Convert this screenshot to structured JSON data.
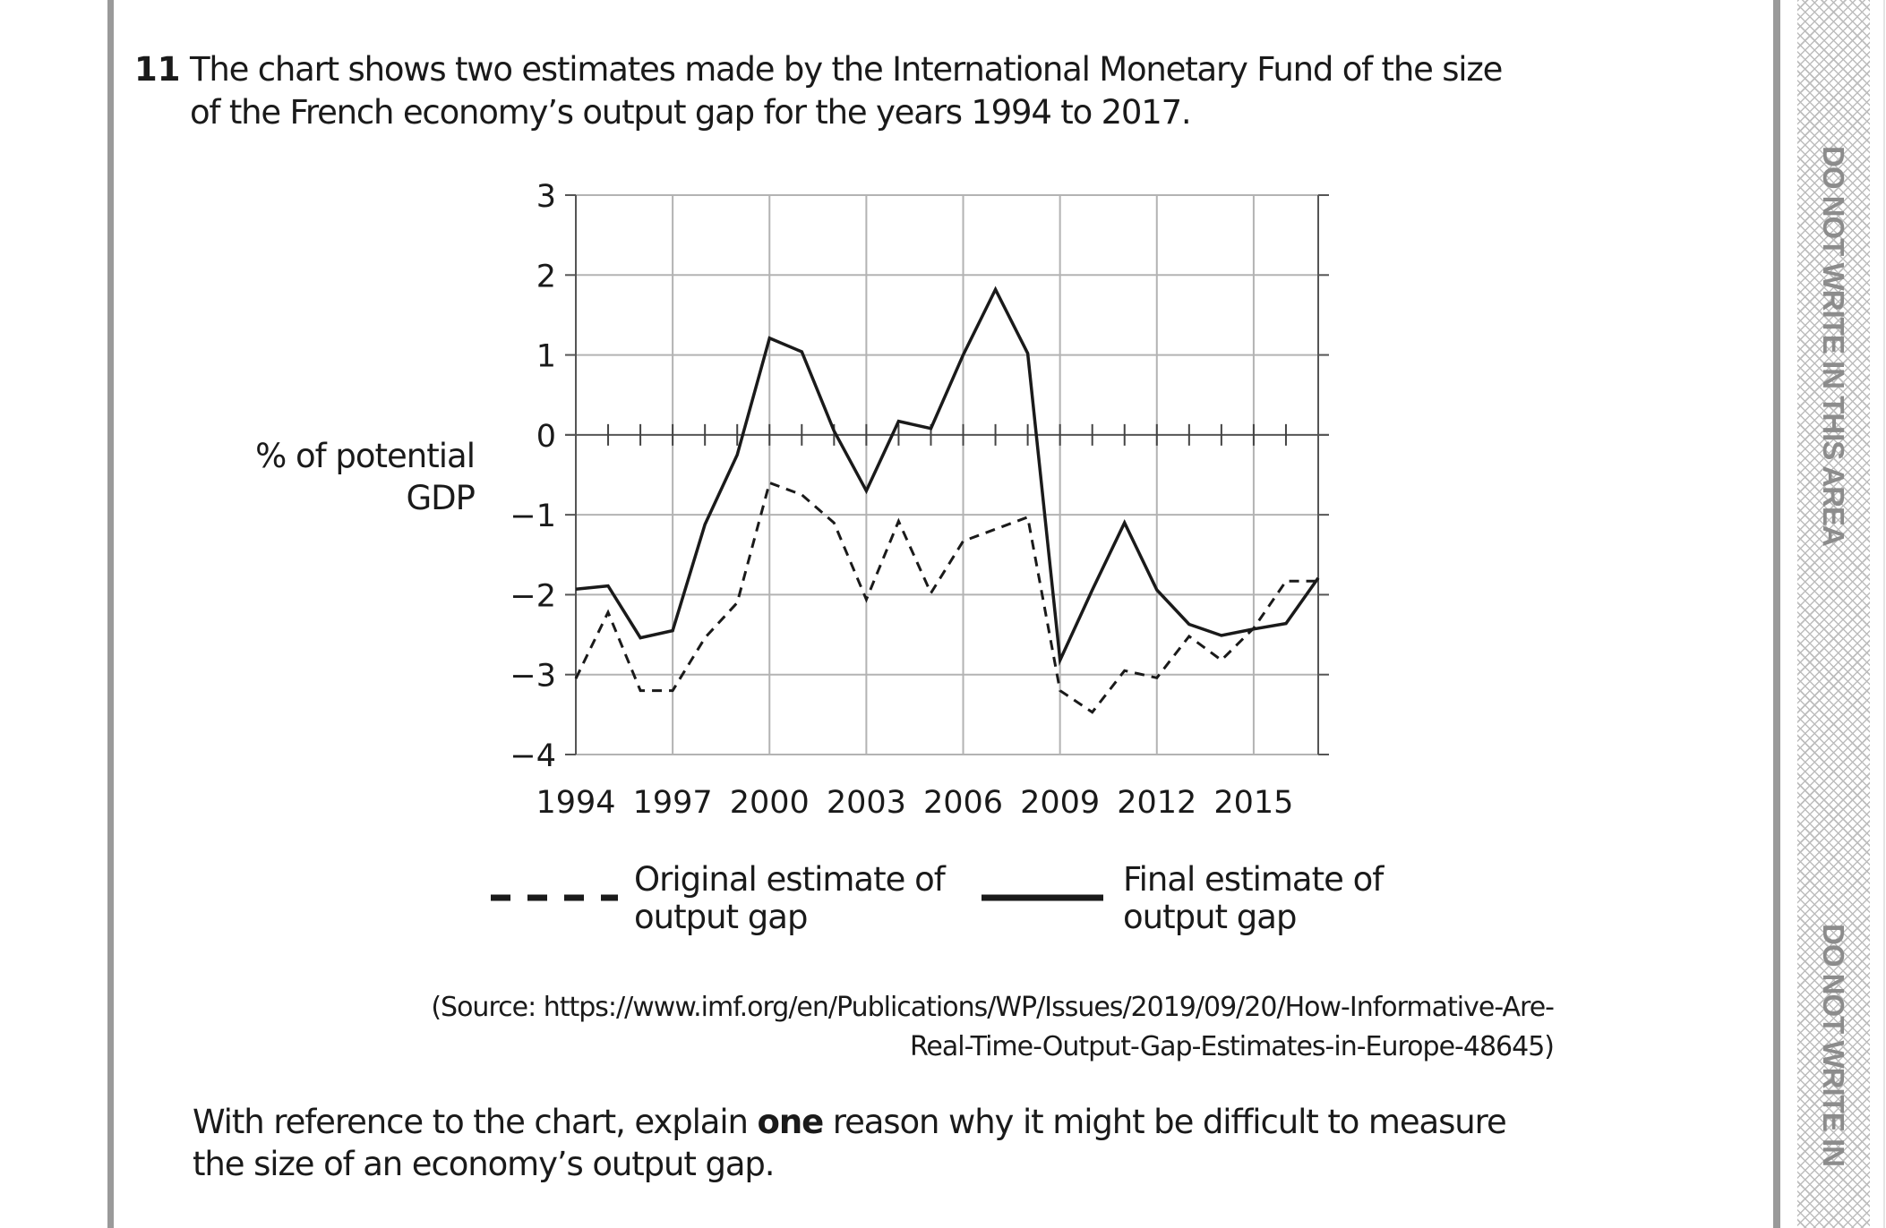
{
  "question": {
    "number": "11",
    "text_line1": "The chart shows two estimates made by the International Monetary Fund of the size",
    "text_line2": "of the French economy’s output gap for the years 1994 to 2017."
  },
  "margin": {
    "warning_1": "DO NOT WRITE IN THIS AREA",
    "warning_2": "DO NOT WRITE IN"
  },
  "chart_data": {
    "type": "line",
    "title": "",
    "xlabel": "",
    "ylabel_line1": "% of potential",
    "ylabel_line2": "GDP",
    "ylim": [
      -4,
      3
    ],
    "xlim": [
      1994,
      2017
    ],
    "yticks": [
      3,
      2,
      1,
      0,
      -1,
      -2,
      -3,
      -4
    ],
    "ytick_labels": [
      "3",
      "2",
      "1",
      "0",
      "−1",
      "−2",
      "−3",
      "−4"
    ],
    "xticks": [
      1994,
      1997,
      2000,
      2003,
      2006,
      2009,
      2012,
      2015
    ],
    "xtick_labels": [
      "1994",
      "1997",
      "2000",
      "2003",
      "2006",
      "2009",
      "2012",
      "2015"
    ],
    "grid": true,
    "legend_position": "bottom",
    "x": [
      1994,
      1995,
      1996,
      1997,
      1998,
      1999,
      2000,
      2001,
      2002,
      2003,
      2004,
      2005,
      2006,
      2007,
      2008,
      2009,
      2010,
      2011,
      2012,
      2013,
      2014,
      2015,
      2016,
      2017
    ],
    "series": [
      {
        "name": "Original estimate of output gap",
        "legend_line1": "Original estimate of",
        "legend_line2": "output gap",
        "style": "dashed",
        "color": "#1a1a1a",
        "values": [
          -3.05,
          -2.22,
          -3.2,
          -3.2,
          -2.54,
          -2.1,
          -0.6,
          -0.75,
          -1.1,
          -2.06,
          -1.08,
          -1.98,
          -1.33,
          -1.18,
          -1.03,
          -3.2,
          -3.47,
          -2.95,
          -3.04,
          -2.52,
          -2.82,
          -2.42,
          -1.83,
          -1.83
        ]
      },
      {
        "name": "Final estimate of output gap",
        "legend_line1": "Final estimate of",
        "legend_line2": "output gap",
        "style": "solid",
        "color": "#1a1a1a",
        "values": [
          -1.93,
          -1.89,
          -2.54,
          -2.45,
          -1.12,
          -0.25,
          1.21,
          1.04,
          0.05,
          -0.7,
          0.17,
          0.08,
          1.0,
          1.82,
          1.02,
          -2.82,
          -1.94,
          -1.1,
          -1.94,
          -2.37,
          -2.51,
          -2.43,
          -2.36,
          -1.79
        ]
      }
    ]
  },
  "source": {
    "line1": "(Source: https://www.imf.org/en/Publications/WP/Issues/2019/09/20/How-Informative-Are-",
    "line2": "Real-Time-Output-Gap-Estimates-in-Europe-48645)"
  },
  "prompt": {
    "line1_before": "With reference to the chart, explain ",
    "line1_bold": "one",
    "line1_after": " reason why it might be difficult to measure",
    "line2": "the size of an economy’s output gap."
  }
}
